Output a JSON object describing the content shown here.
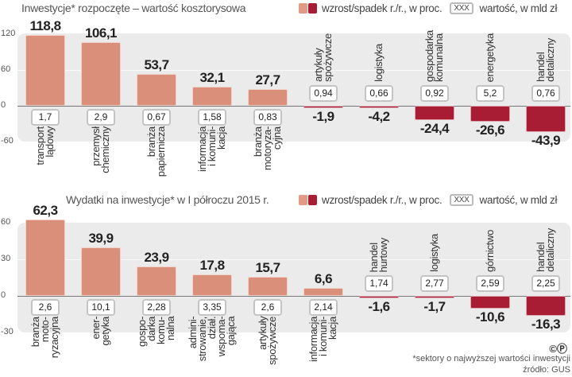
{
  "legend": {
    "label": "wzrost/spadek r./r., w proc.",
    "box_text": "XXX",
    "box_label": "wartość, w mld zł",
    "color_positive": "#d98f79",
    "color_negative": "#a81d34"
  },
  "footer": {
    "note": "*sektory o najwyższej wartości inwestycji",
    "source": "źródło: GUS",
    "logo": "©P"
  },
  "chart_data": [
    {
      "type": "bar",
      "title": "Inwestycje* rozpoczęte – wartość kosztorysowa",
      "ylabel": "wzrost/spadek r./r., w proc.",
      "ylim": [
        -60,
        120
      ],
      "yticks": [
        "120",
        "60",
        "0",
        "-60"
      ],
      "ytick_values": [
        120,
        60,
        0,
        -60
      ],
      "categories": [
        [
          "transport",
          "lądowy"
        ],
        [
          "przemysł",
          "chemiczny"
        ],
        [
          "branża",
          "papiernicza"
        ],
        [
          "informacja",
          "i komuni-",
          "kacja"
        ],
        [
          "branża",
          "motoryza-",
          "cyjna"
        ],
        [
          "artykuły",
          "spożywcze"
        ],
        [
          "logistyka"
        ],
        [
          "gospodarka",
          "komunalna"
        ],
        [
          "energetyka"
        ],
        [
          "handel",
          "detaliczny"
        ]
      ],
      "values": [
        118.8,
        106.1,
        53.7,
        32.1,
        27.7,
        -1.9,
        -4.2,
        -24.4,
        -26.6,
        -43.9
      ],
      "value_labels": [
        "118,8",
        "106,1",
        "53,7",
        "32,1",
        "27,7",
        "-1,9",
        "-4,2",
        "-24,4",
        "-26,6",
        "-43,9"
      ],
      "amounts_bln_pln": [
        "1,7",
        "2,9",
        "0,67",
        "1,58",
        "0,83",
        "0,94",
        "0,66",
        "0,92",
        "5,2",
        "0,76"
      ]
    },
    {
      "type": "bar",
      "title": "Wydatki na inwestycje* w I półroczu 2015 r.",
      "ylabel": "wzrost/spadek r./r., w proc.",
      "ylim": [
        -30,
        60
      ],
      "yticks": [
        "60",
        "30",
        "0",
        "-30"
      ],
      "ytick_values": [
        60,
        30,
        0,
        -30
      ],
      "categories": [
        [
          "branża",
          "moto-",
          "ryzacyjna"
        ],
        [
          "ener-",
          "getyka"
        ],
        [
          "gospo-",
          "darka",
          "komu-",
          "nalna"
        ],
        [
          "admini-",
          "strowanie,",
          "dział.",
          "wspoma-",
          "gająca"
        ],
        [
          "artykuły",
          "spożywcze"
        ],
        [
          "informacja",
          "i komuni-",
          "kacja"
        ],
        [
          "handel",
          "hurtowy"
        ],
        [
          "logistyka"
        ],
        [
          "górnictwo"
        ],
        [
          "handel",
          "detaliczny"
        ]
      ],
      "values": [
        62.3,
        39.9,
        23.9,
        17.8,
        15.7,
        6.6,
        -1.6,
        -1.7,
        -10.6,
        -16.3
      ],
      "value_labels": [
        "62,3",
        "39,9",
        "23,9",
        "17,8",
        "15,7",
        "6,6",
        "-1,6",
        "-1,7",
        "-10,6",
        "-16,3"
      ],
      "amounts_bln_pln": [
        "2,6",
        "10,1",
        "2,28",
        "3,35",
        "2,6",
        "2,14",
        "1,74",
        "2,77",
        "2,59",
        "2,25"
      ]
    }
  ]
}
